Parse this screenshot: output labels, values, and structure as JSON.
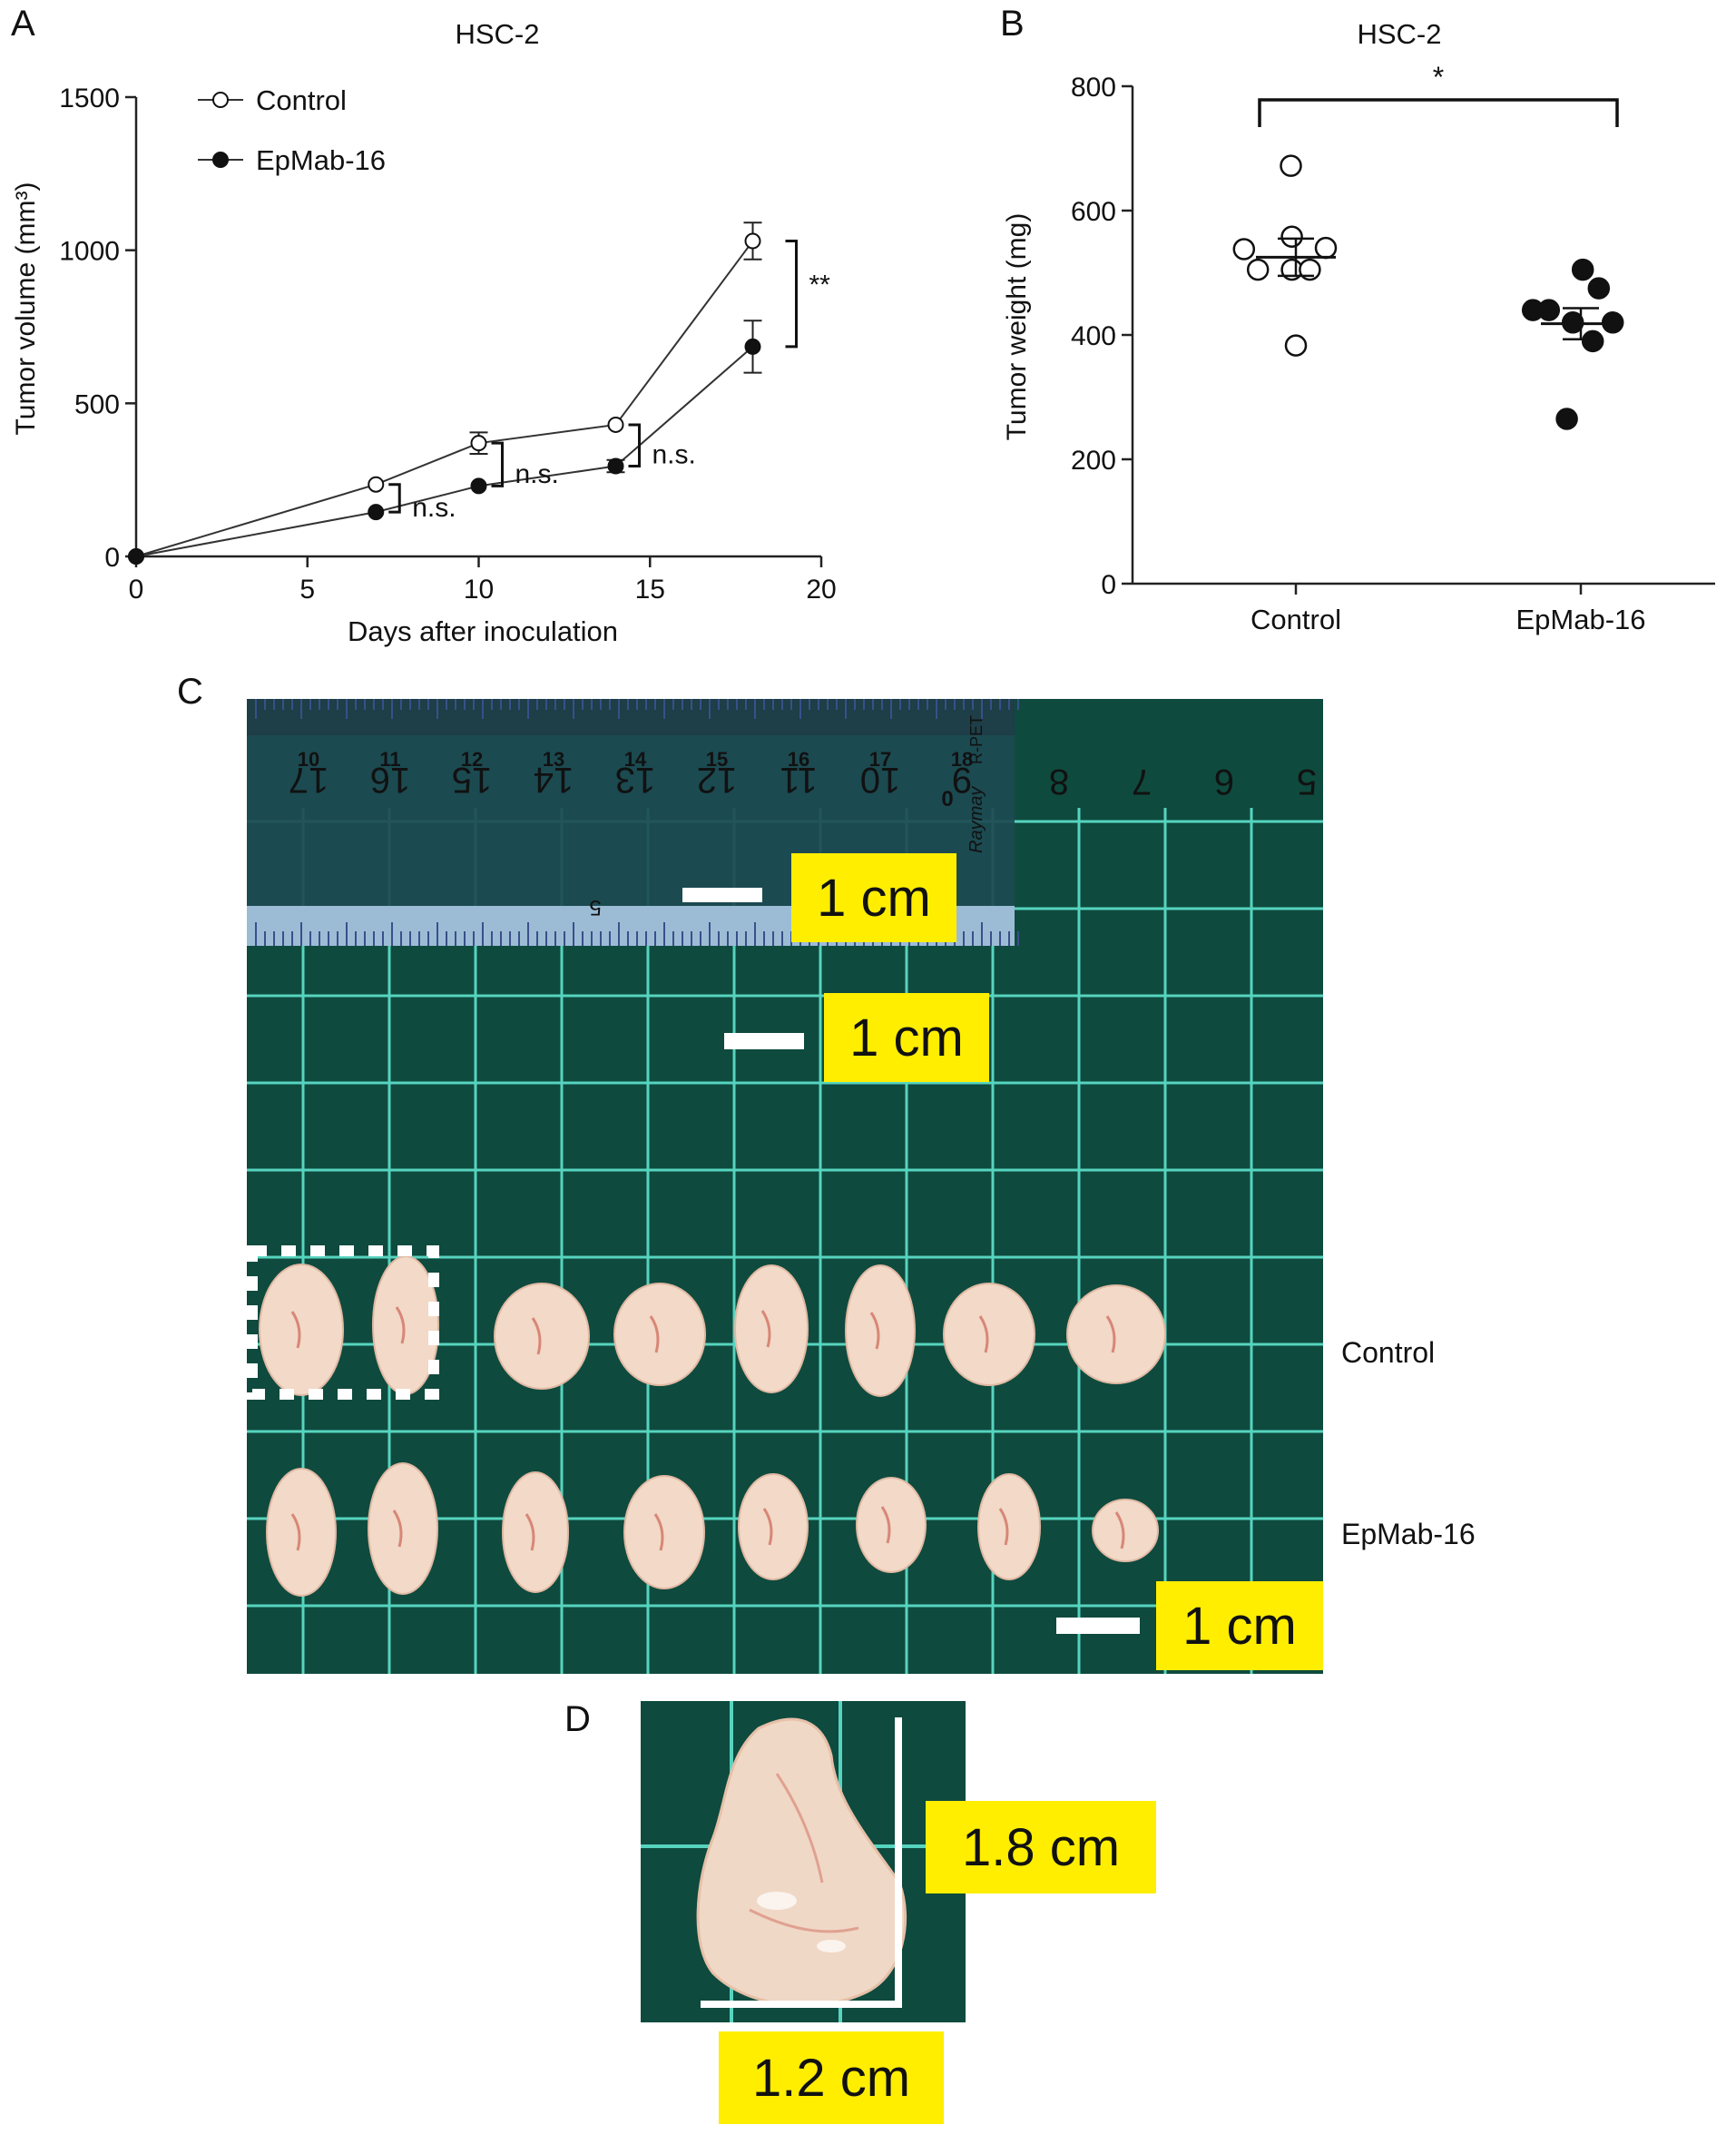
{
  "panels": {
    "a": "A",
    "b": "B",
    "c": "C",
    "d": "D"
  },
  "chart_data": [
    {
      "type": "line",
      "title": "HSC-2",
      "xlabel": "Days after inoculation",
      "ylabel": "Tumor volume (mm³)",
      "xlim": [
        0,
        20
      ],
      "ylim": [
        0,
        1500
      ],
      "xticks": [
        "0",
        "5",
        "10",
        "15",
        "20"
      ],
      "yticks": [
        "0",
        "500",
        "1000",
        "1500"
      ],
      "legend_position": "top-left",
      "series": [
        {
          "name": "Control",
          "marker": "open-circle",
          "x": [
            0,
            7,
            10,
            14,
            18
          ],
          "y": [
            0,
            235,
            370,
            430,
            1030
          ],
          "err": [
            0,
            0,
            35,
            0,
            60
          ]
        },
        {
          "name": "EpMab-16",
          "marker": "filled-circle",
          "x": [
            0,
            7,
            10,
            14,
            18
          ],
          "y": [
            0,
            145,
            230,
            295,
            685
          ],
          "err": [
            0,
            0,
            0,
            20,
            85
          ]
        }
      ],
      "annotations": [
        {
          "text": "n.s.",
          "x": 7
        },
        {
          "text": "n.s.",
          "x": 10
        },
        {
          "text": "n.s.",
          "x": 14
        },
        {
          "text": "**",
          "x": 18
        }
      ]
    },
    {
      "type": "scatter",
      "title": "HSC-2",
      "xlabel": "",
      "ylabel": "Tumor weight (mg)",
      "ylim": [
        0,
        800
      ],
      "yticks": [
        "0",
        "200",
        "400",
        "600",
        "800"
      ],
      "categories": [
        "Control",
        "EpMab-16"
      ],
      "series": [
        {
          "name": "Control",
          "marker": "open-circle",
          "values": [
            672,
            558,
            540,
            538,
            505,
            505,
            505,
            383
          ],
          "jitter": [
            -0.05,
            -0.04,
            0.3,
            -0.52,
            -0.38,
            -0.04,
            0.14,
            0
          ],
          "mean": 525,
          "sem": 30
        },
        {
          "name": "EpMab-16",
          "marker": "filled-circle",
          "values": [
            505,
            475,
            440,
            440,
            420,
            420,
            390,
            265
          ],
          "jitter": [
            0.02,
            0.18,
            -0.48,
            -0.32,
            -0.08,
            0.32,
            0.12,
            -0.14
          ],
          "mean": 418,
          "sem": 25
        }
      ],
      "significance": "*"
    }
  ],
  "photo": {
    "ruler_top_numbers": [
      "10",
      "11",
      "12",
      "13",
      "14",
      "15",
      "16",
      "17",
      "18"
    ],
    "ruler_bottom_numbers": [
      "17",
      "16",
      "15",
      "14",
      "13",
      "12",
      "11",
      "10",
      "9"
    ],
    "mat_numbers": [
      "8",
      "7",
      "6",
      "5"
    ],
    "ruler_mid_number": "5",
    "ruler_zero": "0",
    "ruler_brand": "Raymay",
    "ruler_material": "R-PET",
    "scale_labels": [
      "1 cm",
      "1 cm",
      "1 cm"
    ],
    "row_labels": [
      "Control",
      "EpMab-16"
    ]
  },
  "detail": {
    "height_label": "1.8 cm",
    "width_label": "1.2 cm"
  }
}
